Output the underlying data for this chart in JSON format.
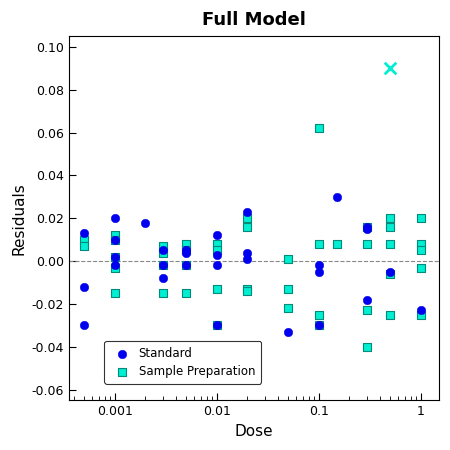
{
  "title": "Full Model",
  "xlabel": "Dose",
  "ylabel": "Residuals",
  "ylim": [
    -0.065,
    0.105
  ],
  "yticks": [
    -0.06,
    -0.04,
    -0.02,
    0.0,
    0.02,
    0.04,
    0.06,
    0.08,
    0.1
  ],
  "standard_color": "#0000EE",
  "sample_color": "#00EED1",
  "sample_edge_color": "#008B7B",
  "outlier_color": "#00EED1",
  "standard_points": [
    [
      0.0005,
      0.013
    ],
    [
      0.0005,
      -0.012
    ],
    [
      0.0005,
      -0.03
    ],
    [
      0.001,
      0.02
    ],
    [
      0.001,
      0.01
    ],
    [
      0.001,
      0.002
    ],
    [
      0.001,
      -0.002
    ],
    [
      0.002,
      0.018
    ],
    [
      0.003,
      0.005
    ],
    [
      0.003,
      -0.002
    ],
    [
      0.003,
      -0.008
    ],
    [
      0.005,
      0.005
    ],
    [
      0.005,
      0.004
    ],
    [
      0.005,
      -0.002
    ],
    [
      0.01,
      0.012
    ],
    [
      0.01,
      0.003
    ],
    [
      0.01,
      -0.002
    ],
    [
      0.01,
      -0.03
    ],
    [
      0.02,
      0.023
    ],
    [
      0.02,
      0.004
    ],
    [
      0.02,
      0.001
    ],
    [
      0.05,
      -0.033
    ],
    [
      0.1,
      -0.002
    ],
    [
      0.1,
      -0.005
    ],
    [
      0.1,
      -0.03
    ],
    [
      0.15,
      0.03
    ],
    [
      0.3,
      0.016
    ],
    [
      0.3,
      0.015
    ],
    [
      0.3,
      -0.018
    ],
    [
      0.5,
      -0.005
    ],
    [
      1.0,
      -0.023
    ]
  ],
  "sample_points": [
    [
      0.0005,
      0.01
    ],
    [
      0.0005,
      0.007
    ],
    [
      0.001,
      0.012
    ],
    [
      0.001,
      0.01
    ],
    [
      0.001,
      0.002
    ],
    [
      0.001,
      -0.003
    ],
    [
      0.001,
      -0.015
    ],
    [
      0.003,
      0.007
    ],
    [
      0.003,
      0.004
    ],
    [
      0.003,
      -0.002
    ],
    [
      0.003,
      -0.015
    ],
    [
      0.005,
      0.008
    ],
    [
      0.005,
      0.005
    ],
    [
      0.005,
      -0.002
    ],
    [
      0.005,
      -0.015
    ],
    [
      0.01,
      0.008
    ],
    [
      0.01,
      0.005
    ],
    [
      0.01,
      -0.013
    ],
    [
      0.01,
      -0.03
    ],
    [
      0.02,
      0.02
    ],
    [
      0.02,
      0.016
    ],
    [
      0.02,
      -0.013
    ],
    [
      0.02,
      -0.014
    ],
    [
      0.05,
      0.001
    ],
    [
      0.05,
      -0.013
    ],
    [
      0.05,
      -0.022
    ],
    [
      0.1,
      0.062
    ],
    [
      0.1,
      0.008
    ],
    [
      0.1,
      -0.025
    ],
    [
      0.1,
      -0.03
    ],
    [
      0.15,
      0.008
    ],
    [
      0.3,
      0.016
    ],
    [
      0.3,
      0.008
    ],
    [
      0.3,
      -0.023
    ],
    [
      0.3,
      -0.04
    ],
    [
      0.5,
      0.02
    ],
    [
      0.5,
      0.016
    ],
    [
      0.5,
      0.008
    ],
    [
      0.5,
      -0.006
    ],
    [
      0.5,
      -0.025
    ],
    [
      1.0,
      0.02
    ],
    [
      1.0,
      0.008
    ],
    [
      1.0,
      0.005
    ],
    [
      1.0,
      -0.003
    ],
    [
      1.0,
      -0.025
    ]
  ],
  "outlier_points": [
    [
      0.5,
      0.09
    ]
  ],
  "x_tick_positions": [
    0.001,
    0.01,
    0.1,
    1.0
  ],
  "x_tick_labels": [
    "0.001",
    "0.01",
    "0.1",
    "1"
  ],
  "figsize": [
    4.5,
    4.5
  ],
  "dpi": 100
}
